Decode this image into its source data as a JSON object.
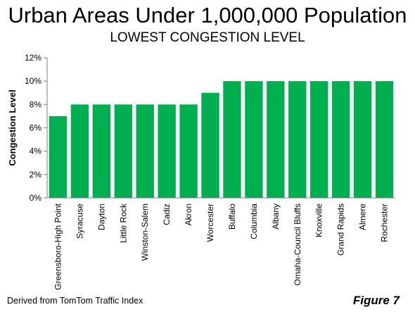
{
  "title": "Urban Areas Under 1,000,000 Population",
  "subtitle": "LOWEST CONGESTION LEVEL",
  "source_note": "Derived from TomTom Traffic Index",
  "figure_label": "Figure 7",
  "colors": {
    "bar": "#00b050",
    "axis": "#808080",
    "text": "#000000"
  },
  "chart_data": {
    "type": "bar",
    "title": "Urban Areas Under 1,000,000 Population",
    "subtitle": "LOWEST CONGESTION LEVEL",
    "xlabel": "",
    "ylabel": "Congestion Level",
    "ylim": [
      0,
      12
    ],
    "y_ticks": [
      "0%",
      "2%",
      "4%",
      "6%",
      "8%",
      "10%",
      "12%"
    ],
    "grid": false,
    "legend": "none",
    "categories": [
      "Greensboro-High Point",
      "Syracuse",
      "Dayton",
      "Little Rock",
      "Winston-Salem",
      "Cadiz",
      "Akron",
      "Worcester",
      "Buffalo",
      "Columbia",
      "Albany",
      "Omaha-Council Bluffs",
      "Knoxville",
      "Grand Rapids",
      "Almere",
      "Rochester"
    ],
    "values": [
      7,
      8,
      8,
      8,
      8,
      8,
      8,
      9,
      10,
      10,
      10,
      10,
      10,
      10,
      10,
      10
    ]
  }
}
